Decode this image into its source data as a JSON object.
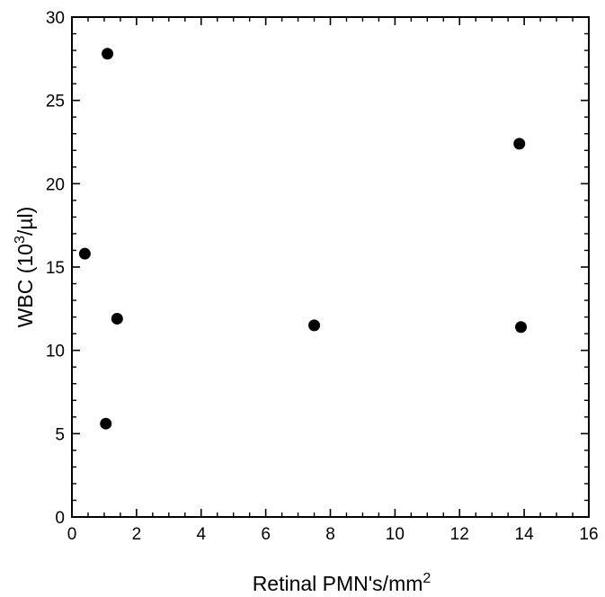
{
  "chart_data": {
    "type": "scatter",
    "xlabel": "Retinal PMN's/mm",
    "xlabel_superscript": "2",
    "ylabel_prefix": "WBC (10",
    "ylabel_superscript": "3",
    "ylabel_suffix": "/µl)",
    "xlim": [
      0,
      16
    ],
    "ylim": [
      0,
      30
    ],
    "x_ticks": [
      0,
      2,
      4,
      6,
      8,
      10,
      12,
      14,
      16
    ],
    "y_ticks": [
      0,
      5,
      10,
      15,
      20,
      25,
      30
    ],
    "x_minor_step": 0.5,
    "y_minor_step": 1,
    "grid": false,
    "marker": "filled-circle",
    "marker_color": "#000000",
    "points": [
      {
        "x": 1.1,
        "y": 27.8
      },
      {
        "x": 0.4,
        "y": 15.8
      },
      {
        "x": 1.4,
        "y": 11.9
      },
      {
        "x": 1.05,
        "y": 5.6
      },
      {
        "x": 7.5,
        "y": 11.5
      },
      {
        "x": 13.85,
        "y": 22.4
      },
      {
        "x": 13.9,
        "y": 11.4
      }
    ]
  }
}
